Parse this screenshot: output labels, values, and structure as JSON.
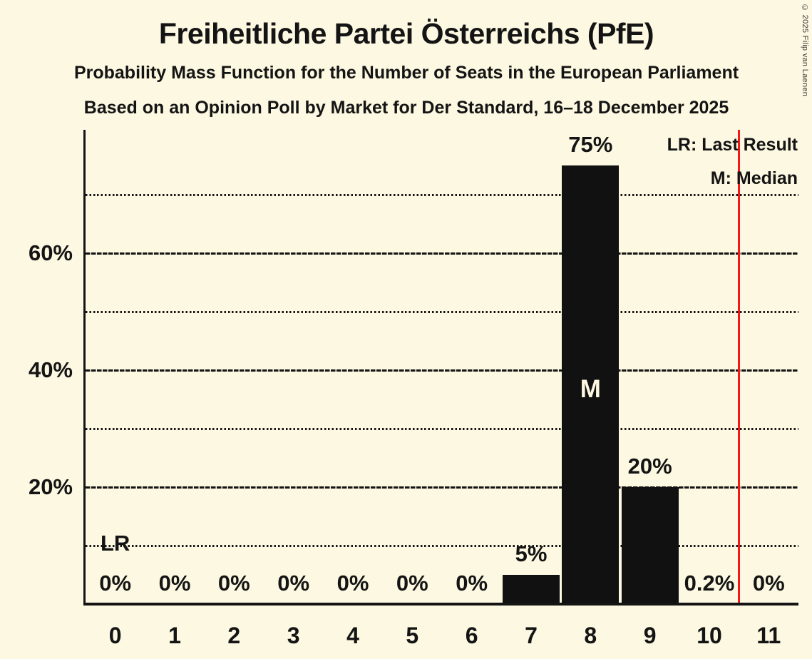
{
  "page": {
    "background_color": "#FCF8E1",
    "copyright": "© 2025 Filip van Laenen"
  },
  "header": {
    "title": "Freiheitliche Partei Österreichs (PfE)",
    "subtitle_line1": "Probability Mass Function for the Number of Seats in the European Parliament",
    "subtitle_line2": "Based on an Opinion Poll by Market for Der Standard, 16–18 December 2025"
  },
  "legend": {
    "last_result_label": "LR: Last Result",
    "median_label": "M: Median"
  },
  "chart_data": {
    "type": "bar",
    "title": "Freiheitliche Partei Österreichs (PfE)",
    "xlabel": "",
    "ylabel": "",
    "categories": [
      "0",
      "1",
      "2",
      "3",
      "4",
      "5",
      "6",
      "7",
      "8",
      "9",
      "10",
      "11"
    ],
    "values": [
      0,
      0,
      0,
      0,
      0,
      0,
      0,
      5,
      75,
      20,
      0.2,
      0
    ],
    "bar_labels": [
      "0%",
      "0%",
      "0%",
      "0%",
      "0%",
      "0%",
      "0%",
      "5%",
      "75%",
      "20%",
      "0.2%",
      "0%"
    ],
    "ylim": [
      0,
      81
    ],
    "y_ticks": [
      {
        "value": 20,
        "label": "20%"
      },
      {
        "value": 40,
        "label": "40%"
      },
      {
        "value": 60,
        "label": "60%"
      }
    ],
    "solid_gridlines": [
      20,
      40,
      60
    ],
    "dotted_gridlines": [
      10,
      30,
      50,
      70
    ],
    "grid": true,
    "legend_position": "top-right",
    "median": {
      "seat_index": 8,
      "marker": "M"
    },
    "last_result": {
      "seat_index": 0,
      "marker": "LR"
    },
    "vline": {
      "seat_position": 10.5,
      "color": "#F81616"
    },
    "colors": {
      "bar": "#111111",
      "text": "#141414",
      "background": "#FCF8E1",
      "red_line": "#F81616",
      "median_marker_text": "#FCF8E1"
    }
  }
}
